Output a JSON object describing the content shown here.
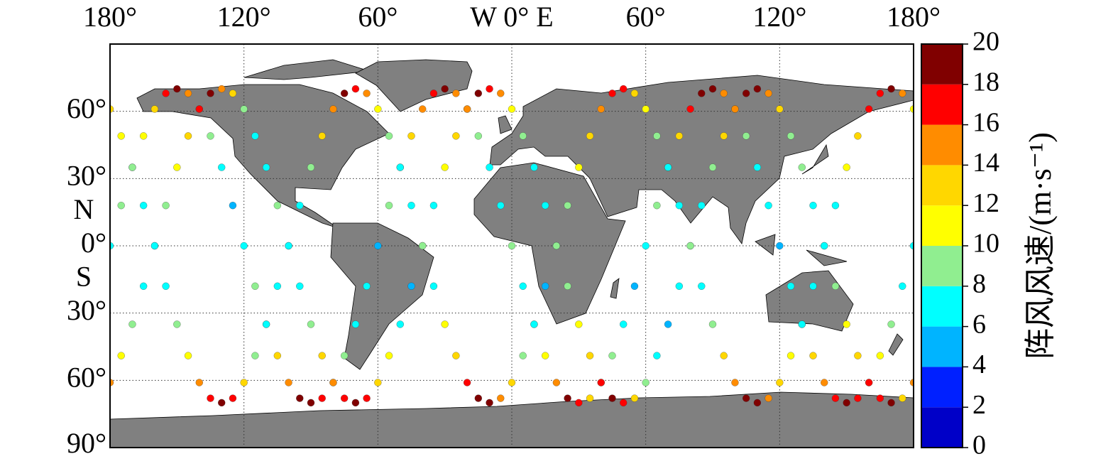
{
  "chart_data": {
    "type": "map",
    "xlim": [
      -180,
      180
    ],
    "ylim": [
      -90,
      90
    ],
    "grid": true,
    "land_color": "#808080",
    "xticks": [
      {
        "value": -180,
        "label": "180°"
      },
      {
        "value": -120,
        "label": "120°"
      },
      {
        "value": -60,
        "label": "60°"
      },
      {
        "value": 0,
        "label": "W 0° E"
      },
      {
        "value": 60,
        "label": "60°"
      },
      {
        "value": 120,
        "label": "120°"
      },
      {
        "value": 180,
        "label": "180°"
      }
    ],
    "yticks": [
      {
        "value": 60,
        "label": "60°"
      },
      {
        "value": 30,
        "label": "30°"
      },
      {
        "value": 0,
        "label": "0°"
      },
      {
        "value": -30,
        "label": "30°"
      },
      {
        "value": -60,
        "label": "60°"
      },
      {
        "value": -90,
        "label": "90°"
      }
    ],
    "north_label": "N",
    "south_label": "S",
    "colorbar": {
      "label": "阵风风速/(m·s⁻¹)",
      "ticks": [
        0,
        2,
        4,
        6,
        8,
        10,
        12,
        14,
        16,
        18,
        20
      ],
      "colors": [
        "#0000c8",
        "#0020ff",
        "#00b4ff",
        "#00ffff",
        "#90ee90",
        "#ffff00",
        "#ffd700",
        "#ff8c00",
        "#ff0000",
        "#800000"
      ]
    },
    "tracks": {
      "lon": [
        -180,
        -175,
        -170,
        -165,
        -160,
        -155,
        -150,
        -145,
        -140,
        -135,
        -130,
        -125,
        -120,
        -115,
        -110,
        -105,
        -100,
        -95,
        -90,
        -85,
        -80,
        -75,
        -70,
        -65,
        -60,
        -55,
        -50,
        -45,
        -40,
        -35,
        -30,
        -25,
        -20,
        -15,
        -10,
        -5,
        0,
        5,
        10,
        15,
        20,
        25,
        30,
        35,
        40,
        45,
        50,
        55,
        60,
        65,
        70,
        75,
        80,
        85,
        90,
        95,
        100,
        105,
        110,
        115,
        120,
        125,
        130,
        135,
        140,
        145,
        150,
        155,
        160,
        165,
        170,
        175,
        180
      ],
      "series": [
        {
          "lat": [
            0,
            18,
            35,
            49,
            61,
            68,
            70,
            68,
            61,
            49,
            35,
            18,
            0,
            -18,
            -35,
            -49,
            -61,
            -68,
            -70,
            -68,
            -61,
            -49,
            -35,
            -18,
            0,
            18,
            35,
            49,
            61,
            68,
            70,
            68,
            61,
            49,
            35,
            18,
            0,
            -18,
            -35,
            -49,
            -61,
            -68,
            -70,
            -68,
            -61,
            -49,
            -35,
            -18,
            0,
            18,
            35,
            49,
            61,
            68,
            70,
            68,
            61,
            49,
            35,
            18,
            0,
            -18,
            -35,
            -49,
            -61,
            -68,
            -70,
            -68,
            -61,
            -49,
            -35,
            -18,
            0
          ],
          "speed": [
            7,
            9,
            6,
            11,
            13,
            17,
            19,
            15,
            12,
            8,
            7,
            5,
            6,
            8,
            9,
            12,
            14,
            18,
            19,
            16,
            11,
            9,
            7,
            6,
            5,
            8,
            10,
            12,
            15,
            16,
            18,
            14,
            13,
            9,
            6,
            7,
            8,
            7,
            10,
            11,
            14,
            19,
            17,
            13,
            10,
            8,
            6,
            4,
            7,
            9,
            12,
            13,
            16,
            18,
            20,
            15,
            12,
            9,
            7,
            6,
            5,
            7,
            9,
            13,
            15,
            17,
            18,
            16,
            11,
            10,
            8,
            7,
            6
          ]
        },
        {
          "lat": [
            61,
            49,
            35,
            18,
            0,
            -18,
            -35,
            -49,
            -61,
            -68,
            -70,
            -68,
            -61,
            -49,
            -35,
            -18,
            0,
            18,
            35,
            49,
            61,
            68,
            70,
            68,
            61,
            49,
            35,
            18,
            0,
            -18,
            -35,
            -49,
            -61,
            -68,
            -70,
            -68,
            -61,
            -49,
            -35,
            -18,
            0,
            18,
            35,
            49,
            61,
            68,
            70,
            68,
            61,
            49,
            35,
            18,
            0,
            -18,
            -35,
            -49,
            -61,
            -68,
            -70,
            -68,
            -61,
            -49,
            -35,
            -18,
            0,
            18,
            35,
            49,
            61,
            68,
            70,
            68,
            61
          ],
          "speed": [
            12,
            10,
            8,
            7,
            5,
            6,
            9,
            11,
            14,
            17,
            19,
            16,
            13,
            9,
            7,
            6,
            3,
            7,
            8,
            12,
            15,
            18,
            17,
            14,
            11,
            8,
            6,
            7,
            9,
            7,
            10,
            13,
            16,
            19,
            18,
            15,
            12,
            9,
            7,
            5,
            6,
            8,
            11,
            12,
            15,
            17,
            16,
            13,
            10,
            8,
            7,
            6,
            4,
            7,
            9,
            13,
            14,
            18,
            19,
            15,
            12,
            10,
            6,
            7,
            8,
            6,
            10,
            12,
            16,
            17,
            18,
            14,
            11
          ]
        },
        {
          "lat": [
            -61,
            -49,
            -35,
            -18,
            0,
            18,
            35,
            49,
            61,
            68,
            70,
            68,
            61,
            49,
            35,
            18,
            0,
            -18,
            -35,
            -49,
            -61,
            -68,
            -70,
            -68,
            -61,
            -49,
            -35,
            -18,
            0,
            18,
            35,
            49,
            61,
            68,
            70,
            68,
            61,
            49,
            35,
            18,
            0,
            -18,
            -35,
            -49,
            -61,
            -68,
            -70,
            -68,
            -61,
            -49,
            -35,
            -18,
            0,
            18,
            35,
            49,
            61,
            68,
            70,
            68,
            61,
            49,
            35,
            18,
            0,
            -18,
            -35,
            -49,
            -61,
            -68,
            -70,
            -68,
            -61
          ],
          "speed": [
            14,
            11,
            8,
            7,
            6,
            9,
            10,
            13,
            16,
            18,
            15,
            12,
            9,
            7,
            6,
            8,
            7,
            6,
            9,
            12,
            14,
            17,
            19,
            16,
            13,
            10,
            7,
            5,
            8,
            7,
            11,
            12,
            15,
            18,
            17,
            14,
            10,
            8,
            6,
            7,
            9,
            8,
            10,
            13,
            17,
            19,
            16,
            12,
            9,
            7,
            5,
            6,
            8,
            7,
            9,
            12,
            15,
            18,
            18,
            15,
            12,
            9,
            8,
            7,
            6,
            8,
            11,
            13,
            16,
            17,
            19,
            13,
            15
          ]
        }
      ]
    }
  }
}
